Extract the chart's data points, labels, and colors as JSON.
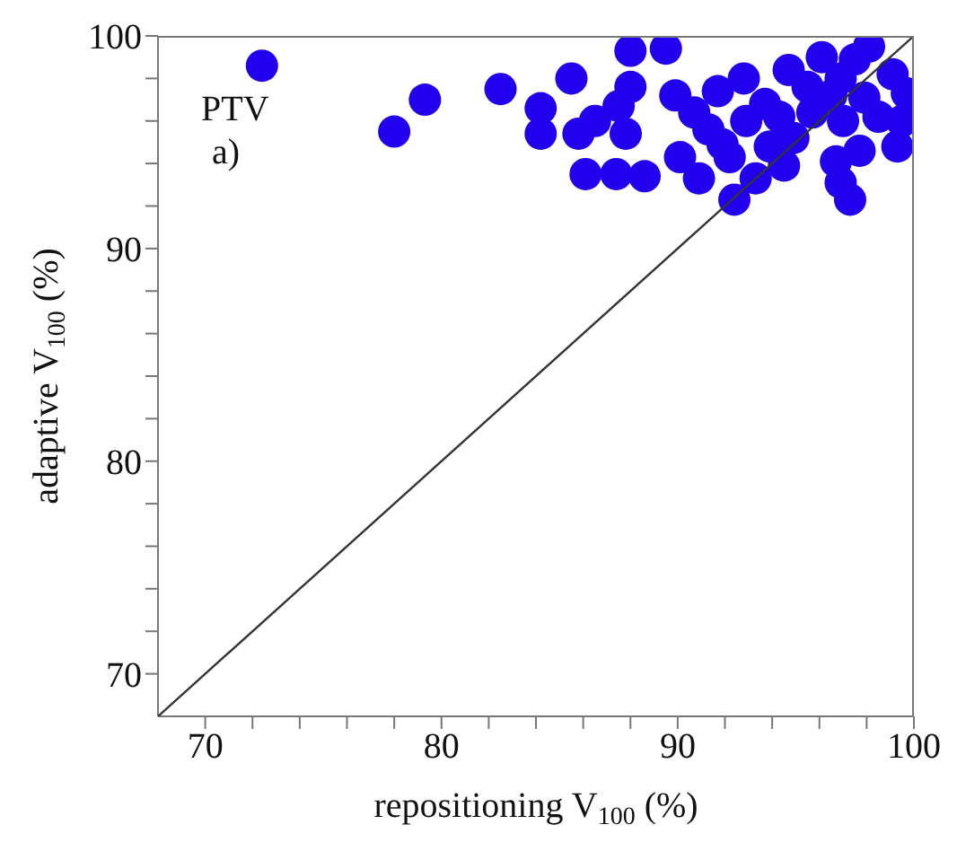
{
  "chart_data": {
    "type": "scatter",
    "xlabel": "repositioning V$_{100}$ (%)",
    "ylabel": "adaptive V$_{100}$ (%)",
    "annotations": [
      "PTV",
      "a)"
    ],
    "xlim": [
      68,
      100
    ],
    "ylim": [
      68,
      100
    ],
    "xticks": [
      70,
      {
        "value": 72,
        "label": null
      },
      {
        "value": 74,
        "label": null
      },
      {
        "value": 76,
        "label": null
      },
      {
        "value": 78,
        "label": null
      },
      80,
      {
        "value": 82,
        "label": null
      },
      {
        "value": 84,
        "label": null
      },
      {
        "value": 86,
        "label": null
      },
      {
        "value": 88,
        "label": null
      },
      90,
      {
        "value": 92,
        "label": null
      },
      {
        "value": 94,
        "label": null
      },
      {
        "value": 96,
        "label": null
      },
      {
        "value": 98,
        "label": null
      },
      100
    ],
    "yticks": [
      70,
      {
        "value": 72,
        "label": null
      },
      {
        "value": 74,
        "label": null
      },
      {
        "value": 76,
        "label": null
      },
      {
        "value": 78,
        "label": null
      },
      80,
      {
        "value": 82,
        "label": null
      },
      {
        "value": 84,
        "label": null
      },
      {
        "value": 86,
        "label": null
      },
      {
        "value": 88,
        "label": null
      },
      90,
      {
        "value": 92,
        "label": null
      },
      {
        "value": 94,
        "label": null
      },
      {
        "value": 96,
        "label": null
      },
      {
        "value": 98,
        "label": null
      },
      100
    ],
    "grid": false,
    "legend": false,
    "marker": "circle",
    "series": [
      {
        "type": "scatter",
        "color": "#2200ee",
        "x": [
          72.4,
          78.0,
          79.3,
          82.5,
          84.2,
          84.2,
          85.5,
          85.8,
          86.1,
          86.5,
          87.4,
          87.5,
          88.0,
          87.8,
          88.0,
          88.6,
          89.5,
          89.9,
          90.1,
          90.7,
          90.9,
          91.3,
          91.7,
          91.9,
          92.4,
          92.8,
          92.9,
          93.3,
          93.7,
          93.9,
          94.3,
          94.7,
          94.9,
          95.5,
          95.7,
          96.1,
          96.5,
          96.7,
          96.9,
          97.0,
          97.3,
          97.5,
          97.7,
          97.9,
          98.1,
          98.5,
          99.1,
          99.7,
          99.5,
          99.3,
          96.9,
          94.5,
          92.2
        ],
        "values": [
          98.6,
          95.5,
          97.0,
          97.5,
          96.6,
          95.4,
          98.0,
          95.4,
          93.5,
          96.0,
          93.5,
          96.7,
          97.6,
          95.4,
          99.3,
          93.4,
          99.4,
          97.2,
          94.3,
          96.4,
          93.3,
          95.6,
          97.4,
          94.9,
          92.3,
          98.0,
          96.0,
          93.3,
          96.8,
          94.8,
          96.2,
          98.4,
          95.2,
          97.6,
          96.4,
          99.0,
          97.2,
          94.1,
          93.1,
          96.0,
          92.3,
          98.9,
          94.6,
          97.1,
          99.5,
          96.2,
          98.2,
          97.3,
          96.0,
          94.8,
          98.0,
          93.9,
          94.3
        ]
      },
      {
        "type": "line",
        "color": "#333333",
        "x": [
          68,
          100
        ],
        "values": [
          68,
          100
        ],
        "line_style": "solid",
        "marker": "none"
      }
    ]
  }
}
